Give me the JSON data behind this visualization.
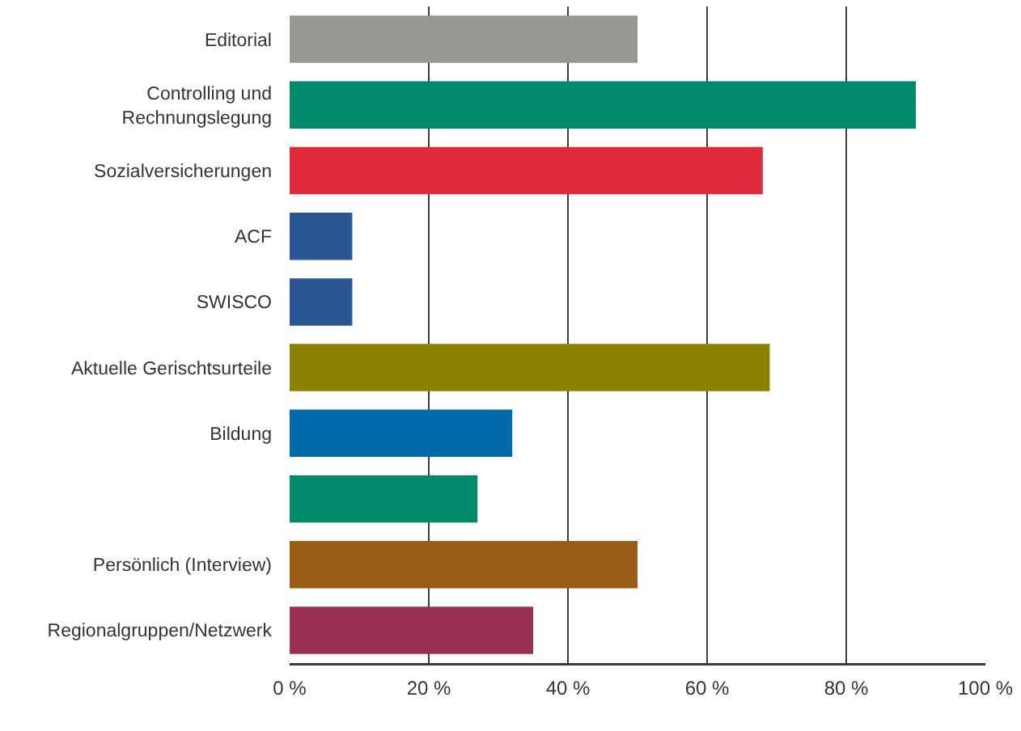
{
  "chart_data": {
    "type": "bar",
    "orientation": "horizontal",
    "categories": [
      "Editorial",
      "Controlling und Rechnungslegung",
      "Sozialversicherungen",
      "ACF",
      "SWISCO",
      "Aktuelle Gerischtsurteile",
      "Bildung",
      null,
      "Persönlich (Interview)",
      "Regionalgruppen/Netzwerk"
    ],
    "values": [
      50,
      90,
      68,
      9,
      9,
      69,
      32,
      27,
      50,
      35
    ],
    "colors": [
      "#999792",
      "#008a6b",
      "#e02b3b",
      "#2c5596",
      "#2c5596",
      "#8a8200",
      "#006bab",
      "#008a6b",
      "#9a5b14",
      "#993154"
    ],
    "xlim": [
      0,
      100
    ],
    "xticks": [
      {
        "value": 0,
        "label": "0 %"
      },
      {
        "value": 20,
        "label": "20 %"
      },
      {
        "value": 40,
        "label": "40 %"
      },
      {
        "value": 60,
        "label": "60 %"
      },
      {
        "value": 80,
        "label": "80 %"
      },
      {
        "value": 100,
        "label": "100 %"
      }
    ],
    "grid": "x"
  }
}
